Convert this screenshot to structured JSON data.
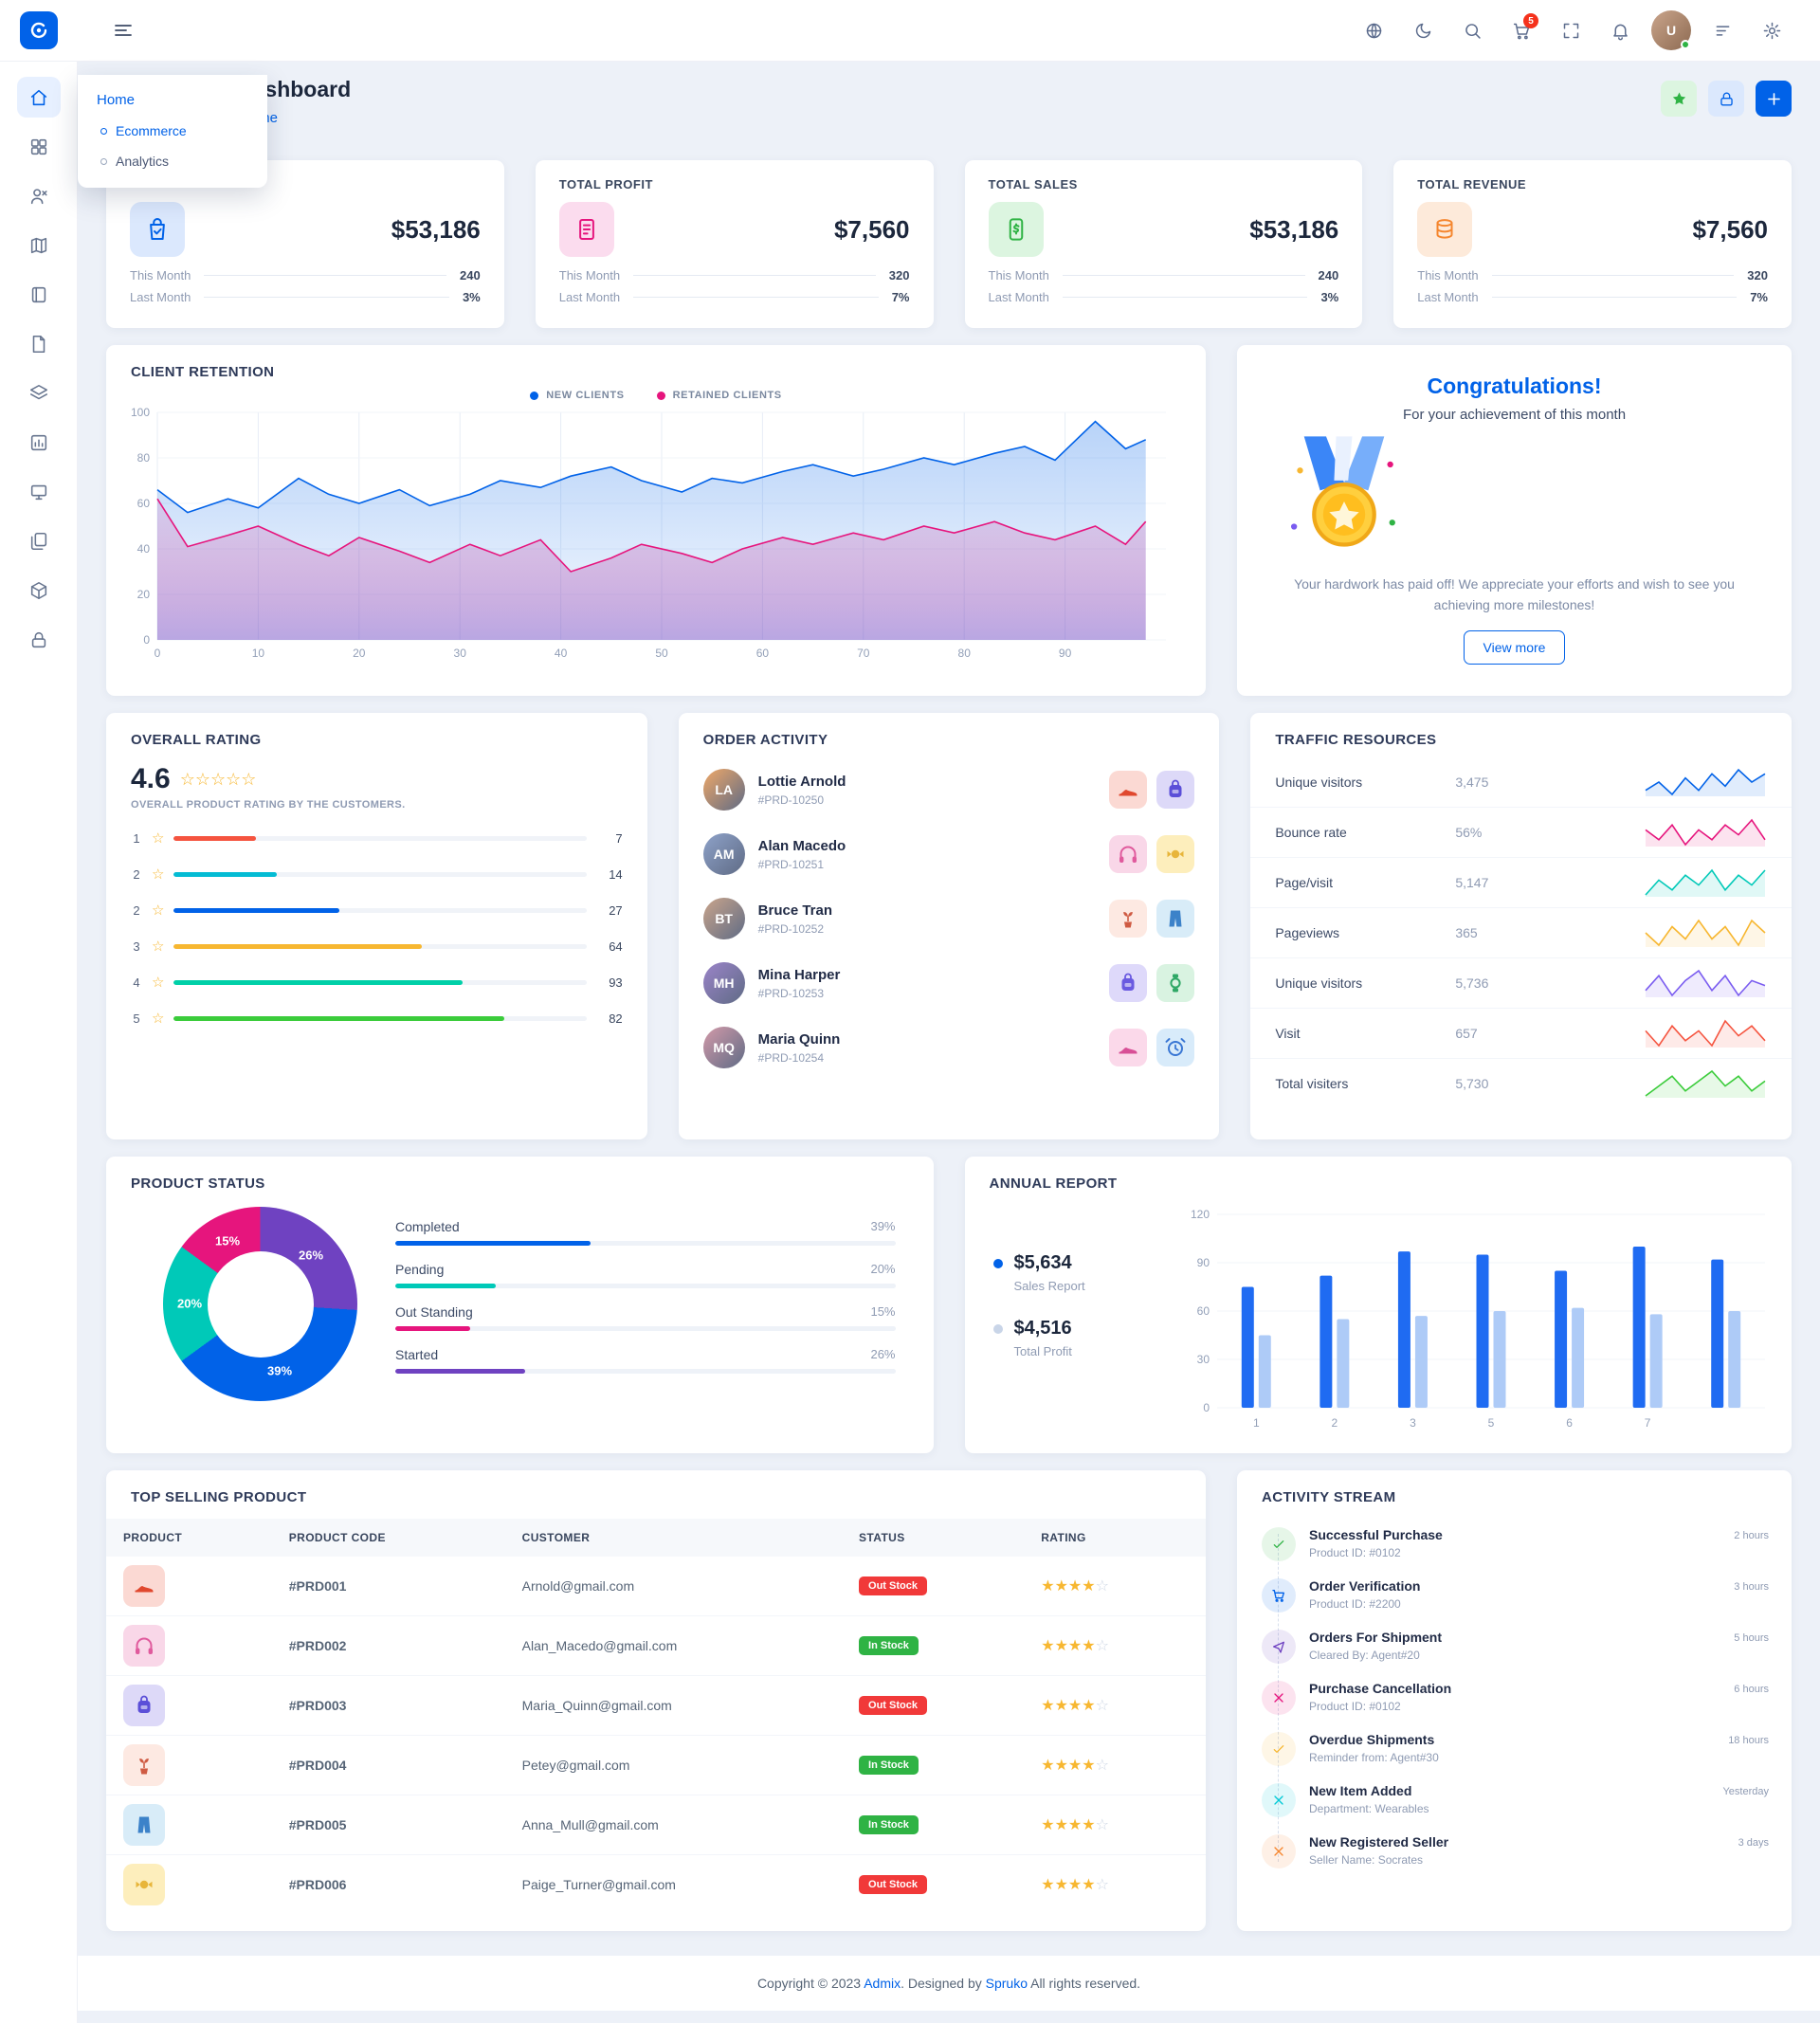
{
  "navbar": {
    "right_icons": [
      {
        "name": "language-globe-icon",
        "icon": "globe"
      },
      {
        "name": "dark-mode-icon",
        "icon": "moon"
      },
      {
        "name": "search-icon",
        "icon": "search"
      },
      {
        "name": "cart-icon",
        "icon": "cart",
        "badge": "5"
      },
      {
        "name": "fullscreen-icon",
        "icon": "expand"
      },
      {
        "name": "notifications-icon",
        "icon": "bell"
      },
      {
        "name": "user-avatar",
        "icon": "avatar",
        "initials": "U"
      },
      {
        "name": "switcher-icon",
        "icon": "filter"
      },
      {
        "name": "settings-icon",
        "icon": "gear"
      }
    ]
  },
  "sidebar": {
    "items": [
      {
        "name": "home",
        "icon": "home",
        "active": true
      },
      {
        "name": "apps",
        "icon": "grid",
        "active": false
      },
      {
        "name": "users",
        "icon": "userx",
        "active": false
      },
      {
        "name": "maps",
        "icon": "map",
        "active": false
      },
      {
        "name": "pages",
        "icon": "book",
        "active": false
      },
      {
        "name": "forms",
        "icon": "file",
        "active": false
      },
      {
        "name": "elements",
        "icon": "layers",
        "active": false
      },
      {
        "name": "charts",
        "icon": "chart",
        "active": false
      },
      {
        "name": "widgets",
        "icon": "monitor",
        "active": false
      },
      {
        "name": "documents",
        "icon": "copy",
        "active": false
      },
      {
        "name": "components",
        "icon": "box",
        "active": false
      },
      {
        "name": "authentication",
        "icon": "lock",
        "active": false
      }
    ]
  },
  "menu_popup": {
    "title": "Home",
    "items": [
      {
        "label": "Ecommerce",
        "active": true
      },
      {
        "label": "Analytics",
        "active": false
      }
    ]
  },
  "page_header": {
    "title": "Dashboard",
    "breadcrumb": "Home",
    "actions": [
      {
        "name": "favorite-button",
        "icon": "star",
        "style": "green"
      },
      {
        "name": "lock-button",
        "icon": "lock",
        "style": "lite"
      },
      {
        "name": "add-button",
        "icon": "plus",
        "style": "blue"
      }
    ]
  },
  "stat_cards": {
    "this_month_label": "This Month",
    "last_month_label": "Last Month",
    "cards": [
      {
        "label": "",
        "value": "$53,186",
        "this_month": "240",
        "last_month": "3%",
        "icon": "bagcheck",
        "icon_color": "#0162e8",
        "icon_bg": "#dbe8fd"
      },
      {
        "label": "TOTAL PROFIT",
        "value": "$7,560",
        "this_month": "320",
        "last_month": "7%",
        "icon": "receipt",
        "icon_color": "#e6157d",
        "icon_bg": "#fbdcee"
      },
      {
        "label": "TOTAL SALES",
        "value": "$53,186",
        "this_month": "240",
        "last_month": "3%",
        "icon": "phone",
        "icon_color": "#2fb344",
        "icon_bg": "#dcf5e0"
      },
      {
        "label": "TOTAL REVENUE",
        "value": "$7,560",
        "this_month": "320",
        "last_month": "7%",
        "icon": "coins",
        "icon_color": "#f5862e",
        "icon_bg": "#fdeada"
      }
    ]
  },
  "client_retention": {
    "title": "CLIENT RETENTION",
    "legend": [
      {
        "label": "NEW CLIENTS",
        "color": "#0162e8"
      },
      {
        "label": "RETAINED CLIENTS",
        "color": "#e6157d"
      }
    ]
  },
  "congrats": {
    "title": "Congratulations!",
    "subtitle": "For your achievement of this month",
    "body": "Your hardwork has paid off! We appreciate your efforts and wish to see you achieving more milestones!",
    "button": "View more"
  },
  "overall_rating": {
    "title": "OVERALL RATING",
    "score": "4.6",
    "caption": "OVERALL PRODUCT RATING BY THE CUSTOMERS.",
    "rows": [
      {
        "label": "1",
        "count": "7",
        "color": "#f5543f",
        "percent": 20
      },
      {
        "label": "2",
        "count": "14",
        "color": "#04bcd4",
        "percent": 25
      },
      {
        "label": "2",
        "count": "27",
        "color": "#0162e8",
        "percent": 40
      },
      {
        "label": "3",
        "count": "64",
        "color": "#f7b731",
        "percent": 60
      },
      {
        "label": "4",
        "count": "93",
        "color": "#00d0a8",
        "percent": 70
      },
      {
        "label": "5",
        "count": "82",
        "color": "#3bcc3b",
        "percent": 80
      }
    ]
  },
  "order_activity": {
    "title": "ORDER ACTIVITY",
    "items": [
      {
        "name": "Lottie Arnold",
        "code": "#PRD-10250",
        "thumbs": [
          {
            "icon": "shoe",
            "bg": "#fbd9d3",
            "color": "#e0482e"
          },
          {
            "icon": "backpack",
            "bg": "#ddd9f8",
            "color": "#5b4fd8"
          }
        ]
      },
      {
        "name": "Alan Macedo",
        "code": "#PRD-10251",
        "thumbs": [
          {
            "icon": "headphones",
            "bg": "#f9d7e8",
            "color": "#e05a9d"
          },
          {
            "icon": "candy",
            "bg": "#fdeebc",
            "color": "#e8b53a"
          }
        ]
      },
      {
        "name": "Bruce Tran",
        "code": "#PRD-10252",
        "thumbs": [
          {
            "icon": "plant",
            "bg": "#fde9e2",
            "color": "#cf5b43"
          },
          {
            "icon": "pants",
            "bg": "#d8ecf8",
            "color": "#3c82c9"
          }
        ]
      },
      {
        "name": "Mina Harper",
        "code": "#PRD-10253",
        "thumbs": [
          {
            "icon": "backpack",
            "bg": "#ded9fa",
            "color": "#6a5ae0"
          },
          {
            "icon": "watch",
            "bg": "#d9f3e1",
            "color": "#2fa866"
          }
        ]
      },
      {
        "name": "Maria Quinn",
        "code": "#PRD-10254",
        "thumbs": [
          {
            "icon": "shoe",
            "bg": "#fbd9ea",
            "color": "#d84f96"
          },
          {
            "icon": "clock",
            "bg": "#d8ebfa",
            "color": "#3a77d4"
          }
        ]
      }
    ]
  },
  "traffic": {
    "title": "TRAFFIC RESOURCES",
    "rows": [
      {
        "label": "Unique visitors",
        "value": "3,475",
        "color": "#0162e8",
        "spark": [
          4,
          6,
          3,
          7,
          4,
          8,
          5,
          9,
          6,
          8
        ]
      },
      {
        "label": "Bounce rate",
        "value": "56%",
        "color": "#e6157d",
        "spark": [
          6,
          4,
          7,
          3,
          6,
          4,
          7,
          5,
          8,
          4
        ]
      },
      {
        "label": "Page/visit",
        "value": "5,147",
        "color": "#00c9b8",
        "spark": [
          3,
          6,
          4,
          7,
          5,
          8,
          4,
          7,
          5,
          8
        ]
      },
      {
        "label": "Pageviews",
        "value": "365",
        "color": "#f7b731",
        "spark": [
          5,
          3,
          6,
          4,
          7,
          4,
          6,
          3,
          7,
          5
        ]
      },
      {
        "label": "Unique visitors",
        "value": "5,736",
        "color": "#7a5cf0",
        "spark": [
          4,
          7,
          3,
          6,
          8,
          4,
          7,
          3,
          6,
          5
        ]
      },
      {
        "label": "Visit",
        "value": "657",
        "color": "#f5543f",
        "spark": [
          6,
          3,
          7,
          4,
          6,
          3,
          8,
          5,
          7,
          4
        ]
      },
      {
        "label": "Total visiters",
        "value": "5,730",
        "color": "#3bcc3b",
        "spark": [
          3,
          5,
          7,
          4,
          6,
          8,
          5,
          7,
          4,
          6
        ]
      }
    ]
  },
  "product_status": {
    "title": "PRODUCT STATUS",
    "legend": [
      {
        "label": "Completed",
        "percent": "39%",
        "color": "#0162e8"
      },
      {
        "label": "Pending",
        "percent": "20%",
        "color": "#00c9b8"
      },
      {
        "label": "Out Standing",
        "percent": "15%",
        "color": "#e6157d"
      },
      {
        "label": "Started",
        "percent": "26%",
        "color": "#6f42c1"
      }
    ]
  },
  "annual_report": {
    "title": "ANNUAL REPORT",
    "stats": [
      {
        "value": "$5,634",
        "label": "Sales Report",
        "dot": "#0162e8"
      },
      {
        "value": "$4,516",
        "label": "Total Profit",
        "dot": "#c9d5e8"
      }
    ]
  },
  "top_selling": {
    "title": "TOP SELLING PRODUCT",
    "headers": [
      "PRODUCT",
      "PRODUCT CODE",
      "CUSTOMER",
      "STATUS",
      "RATING"
    ],
    "rows": [
      {
        "icon": "shoe",
        "bg": "#fbd9d3",
        "color": "#e0482e",
        "code": "#PRD001",
        "customer": "Arnold@gmail.com",
        "status": "Out Stock",
        "status_type": "out",
        "rating": 4
      },
      {
        "icon": "headphones",
        "bg": "#f9d7e8",
        "color": "#e05a9d",
        "code": "#PRD002",
        "customer": "Alan_Macedo@gmail.com",
        "status": "In Stock",
        "status_type": "in",
        "rating": 4
      },
      {
        "icon": "backpack",
        "bg": "#ddd9f8",
        "color": "#5b4fd8",
        "code": "#PRD003",
        "customer": "Maria_Quinn@gmail.com",
        "status": "Out Stock",
        "status_type": "out",
        "rating": 4
      },
      {
        "icon": "plant",
        "bg": "#fde9e2",
        "color": "#cf5b43",
        "code": "#PRD004",
        "customer": "Petey@gmail.com",
        "status": "In Stock",
        "status_type": "in",
        "rating": 4
      },
      {
        "icon": "pants",
        "bg": "#d8ecf8",
        "color": "#3c82c9",
        "code": "#PRD005",
        "customer": "Anna_Mull@gmail.com",
        "status": "In Stock",
        "status_type": "in",
        "rating": 4
      },
      {
        "icon": "candy",
        "bg": "#fdeebc",
        "color": "#e8b53a",
        "code": "#PRD006",
        "customer": "Paige_Turner@gmail.com",
        "status": "Out Stock",
        "status_type": "out",
        "rating": 4
      }
    ]
  },
  "activity_stream": {
    "title": "ACTIVITY STREAM",
    "items": [
      {
        "title": "Successful Purchase",
        "sub": "Product ID: #0102",
        "time": "2 hours",
        "icon": "check",
        "color": "#2fb344"
      },
      {
        "title": "Order Verification",
        "sub": "Product ID: #2200",
        "time": "3 hours",
        "icon": "cart",
        "color": "#0162e8"
      },
      {
        "title": "Orders For Shipment",
        "sub": "Cleared By: Agent#20",
        "time": "5 hours",
        "icon": "send",
        "color": "#6f42c1"
      },
      {
        "title": "Purchase Cancellation",
        "sub": "Product ID: #0102",
        "time": "6 hours",
        "icon": "close",
        "color": "#e6157d"
      },
      {
        "title": "Overdue Shipments",
        "sub": "Reminder from: Agent#30",
        "time": "18 hours",
        "icon": "check",
        "color": "#f7b731"
      },
      {
        "title": "New Item Added",
        "sub": "Department: Wearables",
        "time": "Yesterday",
        "icon": "close",
        "color": "#00c9d6"
      },
      {
        "title": "New Registered Seller",
        "sub": "Seller Name: Socrates",
        "time": "3 days",
        "icon": "close",
        "color": "#f5862e"
      }
    ]
  },
  "footer": {
    "copyright_pre": "Copyright © 2023 ",
    "brand": "Admix",
    "middle": ". Designed by ",
    "designer": "Spruko",
    "suffix": " All rights reserved."
  },
  "chart_data": [
    {
      "name": "client_retention",
      "type": "area",
      "x": [
        0,
        3,
        7,
        10,
        14,
        17,
        20,
        24,
        27,
        31,
        34,
        38,
        41,
        45,
        48,
        52,
        55,
        58,
        62,
        65,
        69,
        72,
        76,
        79,
        83,
        86,
        89,
        93,
        96,
        98
      ],
      "series": [
        {
          "name": "NEW CLIENTS",
          "color": "#0162e8",
          "values": [
            66,
            56,
            62,
            58,
            71,
            64,
            60,
            66,
            59,
            64,
            70,
            67,
            72,
            76,
            70,
            65,
            71,
            69,
            74,
            77,
            72,
            75,
            80,
            77,
            82,
            85,
            79,
            96,
            84,
            88
          ]
        },
        {
          "name": "RETAINED CLIENTS",
          "color": "#e6157d",
          "values": [
            62,
            41,
            46,
            50,
            42,
            37,
            45,
            39,
            34,
            42,
            37,
            44,
            30,
            36,
            42,
            38,
            34,
            40,
            45,
            42,
            47,
            44,
            50,
            47,
            52,
            47,
            44,
            50,
            42,
            52
          ]
        }
      ],
      "xticks": [
        0,
        10,
        20,
        30,
        40,
        50,
        60,
        70,
        80,
        90
      ],
      "yticks": [
        0,
        20,
        40,
        60,
        80,
        100
      ],
      "xlim": [
        0,
        100
      ],
      "ylim": [
        0,
        100
      ],
      "grid": true,
      "legend_position": "top"
    },
    {
      "name": "annual_report",
      "type": "bar",
      "categories": [
        "1",
        "2",
        "3",
        "5",
        "6",
        "7",
        ""
      ],
      "series": [
        {
          "name": "Sales Report",
          "color": "#1f6bf2",
          "values": [
            75,
            82,
            97,
            95,
            85,
            100,
            92
          ]
        },
        {
          "name": "Total Profit",
          "color": "#aecbf7",
          "values": [
            45,
            55,
            57,
            60,
            62,
            58,
            60
          ]
        }
      ],
      "yticks": [
        0,
        30,
        60,
        90,
        120
      ],
      "ylim": [
        0,
        120
      ]
    },
    {
      "name": "product_status",
      "type": "pie",
      "slices": [
        {
          "label": "Started",
          "percent": 26,
          "color": "#6f42c1"
        },
        {
          "label": "Completed",
          "percent": 39,
          "color": "#0162e8"
        },
        {
          "label": "Pending",
          "percent": 20,
          "color": "#00c9b8"
        },
        {
          "label": "Out Standing",
          "percent": 15,
          "color": "#e6157d"
        }
      ]
    }
  ]
}
